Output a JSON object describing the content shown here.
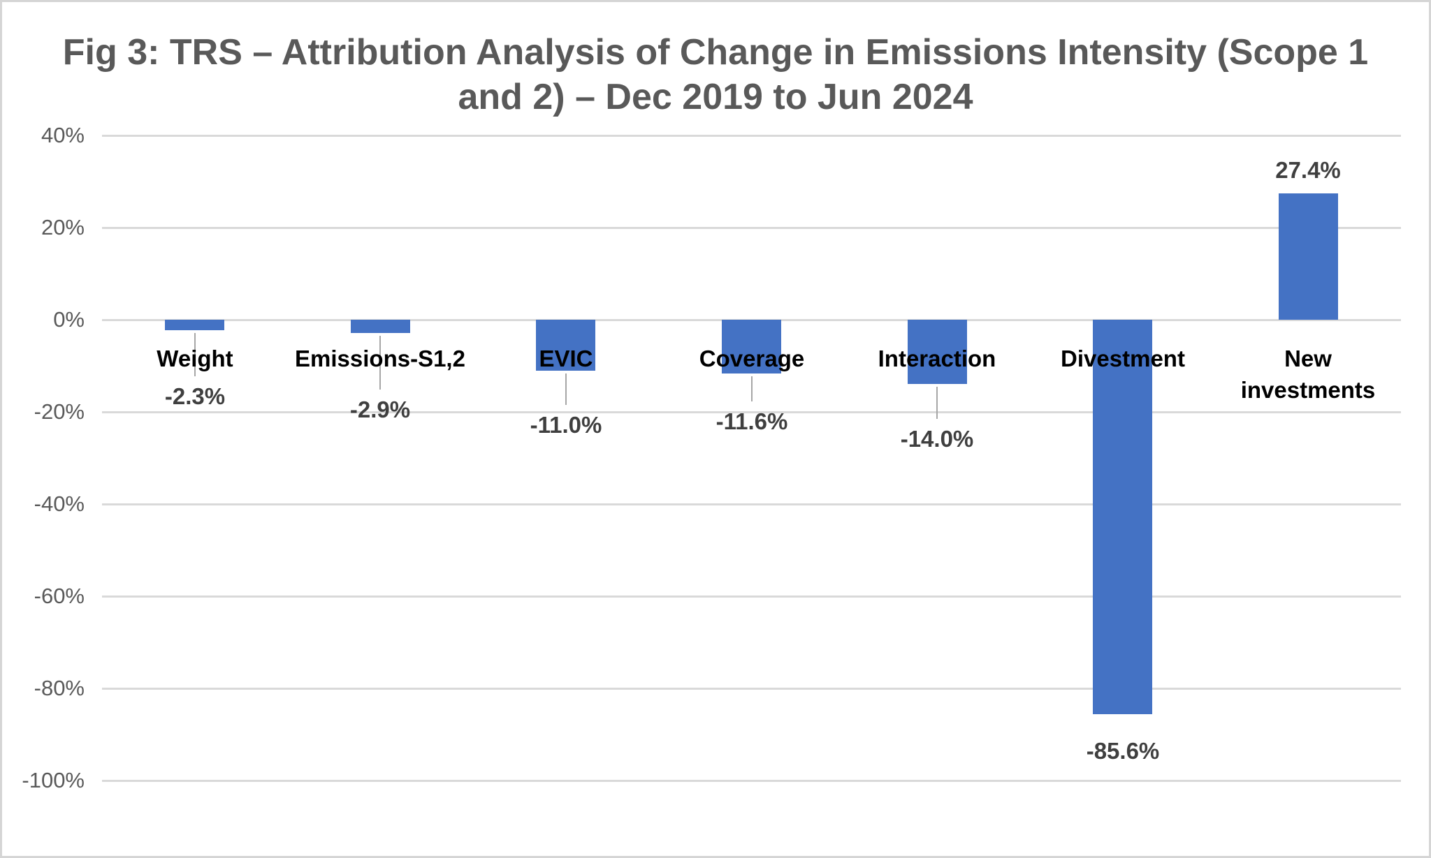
{
  "figure": {
    "title_line1": "Fig 3: TRS – Attribution Analysis of Change in Emissions Intensity (Scope 1",
    "title_line2": "and 2) – Dec 2019 to Jun 2024"
  },
  "chart_data": {
    "type": "bar",
    "title": "Fig 3: TRS – Attribution Analysis of Change in Emissions Intensity (Scope 1 and 2) – Dec 2019 to Jun 2024",
    "xlabel": "",
    "ylabel": "",
    "unit": "%",
    "categories": [
      "Weight",
      "Emissions-S1,2",
      "EVIC",
      "Coverage",
      "Interaction",
      "Divestment",
      "New investments"
    ],
    "category_label_lines": [
      [
        "Weight"
      ],
      [
        "Emissions-S1,2"
      ],
      [
        "EVIC"
      ],
      [
        "Coverage"
      ],
      [
        "Interaction"
      ],
      [
        "Divestment"
      ],
      [
        "New",
        "investments"
      ]
    ],
    "values": [
      -2.3,
      -2.9,
      -11.0,
      -11.6,
      -14.0,
      -85.6,
      27.4
    ],
    "data_labels": [
      "-2.3%",
      "-2.9%",
      "-11.0%",
      "-11.6%",
      "-14.0%",
      "-85.6%",
      "27.4%"
    ],
    "data_labels_have_leader_lines": [
      true,
      true,
      true,
      true,
      true,
      false,
      false
    ],
    "ylim": [
      -100,
      40
    ],
    "y_ticks": [
      40,
      20,
      0,
      -20,
      -40,
      -60,
      -80,
      -100
    ],
    "y_tick_labels": [
      "40%",
      "20%",
      "0%",
      "-20%",
      "-40%",
      "-60%",
      "-80%",
      "-100%"
    ],
    "grid": "horizontal-gridlines",
    "legend": "none",
    "bar_color": "#4472C4"
  },
  "colors": {
    "bar": "#4472C4",
    "title_text": "#595959",
    "axis_tick_text": "#595959",
    "category_label_text": "#000000",
    "data_label_text": "#3F3F3F",
    "gridline": "#D9D9D9",
    "leader_line": "#A6A6A6",
    "figure_border": "#D5D5D5",
    "background": "#FFFFFF"
  }
}
